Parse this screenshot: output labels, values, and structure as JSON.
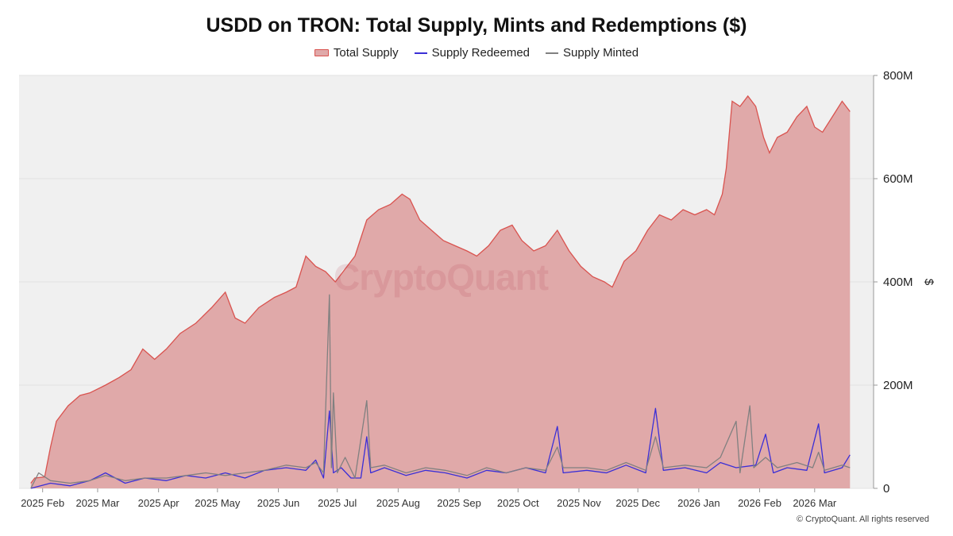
{
  "chart_data": {
    "type": "area",
    "title": "USDD on TRON: Total Supply, Mints and Redemptions ($)",
    "ylabel": "$",
    "ylim": [
      0,
      800000000
    ],
    "y_ticks": [
      {
        "value": 0,
        "label": "0"
      },
      {
        "value": 200000000,
        "label": "200M"
      },
      {
        "value": 400000000,
        "label": "400M"
      },
      {
        "value": 600000000,
        "label": "600M"
      },
      {
        "value": 800000000,
        "label": "800M"
      }
    ],
    "x_range": [
      "2025-01-20",
      "2026-03-31"
    ],
    "x_ticks": [
      {
        "date": "2025-02-01",
        "label": "2025 Feb"
      },
      {
        "date": "2025-03-01",
        "label": "2025 Mar"
      },
      {
        "date": "2025-04-01",
        "label": "2025 Apr"
      },
      {
        "date": "2025-05-01",
        "label": "2025 May"
      },
      {
        "date": "2025-06-01",
        "label": "2025 Jun"
      },
      {
        "date": "2025-07-01",
        "label": "2025 Jul"
      },
      {
        "date": "2025-08-01",
        "label": "2025 Aug"
      },
      {
        "date": "2025-09-01",
        "label": "2025 Sep"
      },
      {
        "date": "2025-10-01",
        "label": "2025 Oct"
      },
      {
        "date": "2025-11-01",
        "label": "2025 Nov"
      },
      {
        "date": "2025-12-01",
        "label": "2025 Dec"
      },
      {
        "date": "2026-01-01",
        "label": "2026 Jan"
      },
      {
        "date": "2026-02-01",
        "label": "2026 Feb"
      },
      {
        "date": "2026-03-01",
        "label": "2026 Mar"
      }
    ],
    "legend": [
      "Total Supply",
      "Supply Redeemed",
      "Supply Minted"
    ],
    "series": [
      {
        "name": "Total Supply",
        "style": "area",
        "color": "#d9534f",
        "points": [
          [
            "2025-01-26",
            10000000
          ],
          [
            "2025-01-28",
            20000000
          ],
          [
            "2025-02-02",
            22000000
          ],
          [
            "2025-02-05",
            80000000
          ],
          [
            "2025-02-08",
            130000000
          ],
          [
            "2025-02-14",
            160000000
          ],
          [
            "2025-02-20",
            180000000
          ],
          [
            "2025-02-25",
            185000000
          ],
          [
            "2025-03-05",
            200000000
          ],
          [
            "2025-03-12",
            215000000
          ],
          [
            "2025-03-18",
            230000000
          ],
          [
            "2025-03-24",
            270000000
          ],
          [
            "2025-03-30",
            250000000
          ],
          [
            "2025-04-05",
            270000000
          ],
          [
            "2025-04-12",
            300000000
          ],
          [
            "2025-04-20",
            320000000
          ],
          [
            "2025-04-28",
            350000000
          ],
          [
            "2025-05-05",
            380000000
          ],
          [
            "2025-05-10",
            330000000
          ],
          [
            "2025-05-15",
            320000000
          ],
          [
            "2025-05-22",
            350000000
          ],
          [
            "2025-05-30",
            370000000
          ],
          [
            "2025-06-05",
            380000000
          ],
          [
            "2025-06-10",
            390000000
          ],
          [
            "2025-06-15",
            450000000
          ],
          [
            "2025-06-20",
            430000000
          ],
          [
            "2025-06-25",
            420000000
          ],
          [
            "2025-06-30",
            400000000
          ],
          [
            "2025-07-04",
            420000000
          ],
          [
            "2025-07-10",
            450000000
          ],
          [
            "2025-07-16",
            520000000
          ],
          [
            "2025-07-22",
            540000000
          ],
          [
            "2025-07-28",
            550000000
          ],
          [
            "2025-08-03",
            570000000
          ],
          [
            "2025-08-07",
            560000000
          ],
          [
            "2025-08-12",
            520000000
          ],
          [
            "2025-08-18",
            500000000
          ],
          [
            "2025-08-24",
            480000000
          ],
          [
            "2025-08-30",
            470000000
          ],
          [
            "2025-09-05",
            460000000
          ],
          [
            "2025-09-10",
            450000000
          ],
          [
            "2025-09-16",
            470000000
          ],
          [
            "2025-09-22",
            500000000
          ],
          [
            "2025-09-28",
            510000000
          ],
          [
            "2025-10-03",
            480000000
          ],
          [
            "2025-10-09",
            460000000
          ],
          [
            "2025-10-15",
            470000000
          ],
          [
            "2025-10-21",
            500000000
          ],
          [
            "2025-10-27",
            460000000
          ],
          [
            "2025-11-02",
            430000000
          ],
          [
            "2025-11-08",
            410000000
          ],
          [
            "2025-11-14",
            400000000
          ],
          [
            "2025-11-18",
            390000000
          ],
          [
            "2025-11-24",
            440000000
          ],
          [
            "2025-11-30",
            460000000
          ],
          [
            "2025-12-06",
            500000000
          ],
          [
            "2025-12-12",
            530000000
          ],
          [
            "2025-12-18",
            520000000
          ],
          [
            "2025-12-24",
            540000000
          ],
          [
            "2025-12-30",
            530000000
          ],
          [
            "2026-01-05",
            540000000
          ],
          [
            "2026-01-09",
            530000000
          ],
          [
            "2026-01-13",
            570000000
          ],
          [
            "2026-01-15",
            620000000
          ],
          [
            "2026-01-18",
            750000000
          ],
          [
            "2026-01-22",
            740000000
          ],
          [
            "2026-01-26",
            760000000
          ],
          [
            "2026-01-30",
            740000000
          ],
          [
            "2026-02-03",
            680000000
          ],
          [
            "2026-02-06",
            650000000
          ],
          [
            "2026-02-10",
            680000000
          ],
          [
            "2026-02-15",
            690000000
          ],
          [
            "2026-02-20",
            720000000
          ],
          [
            "2026-02-25",
            740000000
          ],
          [
            "2026-03-01",
            700000000
          ],
          [
            "2026-03-05",
            690000000
          ],
          [
            "2026-03-10",
            720000000
          ],
          [
            "2026-03-15",
            750000000
          ],
          [
            "2026-03-19",
            730000000
          ]
        ]
      },
      {
        "name": "Supply Redeemed",
        "style": "line",
        "color": "#3b2fd6",
        "points": [
          [
            "2025-01-26",
            0
          ],
          [
            "2025-02-05",
            10000000
          ],
          [
            "2025-02-15",
            5000000
          ],
          [
            "2025-02-25",
            15000000
          ],
          [
            "2025-03-05",
            30000000
          ],
          [
            "2025-03-15",
            10000000
          ],
          [
            "2025-03-25",
            20000000
          ],
          [
            "2025-04-05",
            15000000
          ],
          [
            "2025-04-15",
            25000000
          ],
          [
            "2025-04-25",
            20000000
          ],
          [
            "2025-05-05",
            30000000
          ],
          [
            "2025-05-15",
            20000000
          ],
          [
            "2025-05-25",
            35000000
          ],
          [
            "2025-06-05",
            40000000
          ],
          [
            "2025-06-15",
            35000000
          ],
          [
            "2025-06-20",
            55000000
          ],
          [
            "2025-06-24",
            20000000
          ],
          [
            "2025-06-27",
            150000000
          ],
          [
            "2025-06-29",
            30000000
          ],
          [
            "2025-07-03",
            40000000
          ],
          [
            "2025-07-08",
            20000000
          ],
          [
            "2025-07-13",
            20000000
          ],
          [
            "2025-07-16",
            100000000
          ],
          [
            "2025-07-18",
            30000000
          ],
          [
            "2025-07-25",
            40000000
          ],
          [
            "2025-08-05",
            25000000
          ],
          [
            "2025-08-15",
            35000000
          ],
          [
            "2025-08-25",
            30000000
          ],
          [
            "2025-09-05",
            20000000
          ],
          [
            "2025-09-15",
            35000000
          ],
          [
            "2025-09-25",
            30000000
          ],
          [
            "2025-10-05",
            40000000
          ],
          [
            "2025-10-15",
            30000000
          ],
          [
            "2025-10-21",
            120000000
          ],
          [
            "2025-10-24",
            30000000
          ],
          [
            "2025-11-05",
            35000000
          ],
          [
            "2025-11-15",
            30000000
          ],
          [
            "2025-11-25",
            45000000
          ],
          [
            "2025-12-05",
            30000000
          ],
          [
            "2025-12-10",
            155000000
          ],
          [
            "2025-12-14",
            35000000
          ],
          [
            "2025-12-25",
            40000000
          ],
          [
            "2026-01-05",
            30000000
          ],
          [
            "2026-01-12",
            50000000
          ],
          [
            "2026-01-20",
            40000000
          ],
          [
            "2026-01-30",
            45000000
          ],
          [
            "2026-02-04",
            105000000
          ],
          [
            "2026-02-08",
            30000000
          ],
          [
            "2026-02-15",
            40000000
          ],
          [
            "2026-02-25",
            35000000
          ],
          [
            "2026-03-03",
            125000000
          ],
          [
            "2026-03-06",
            30000000
          ],
          [
            "2026-03-15",
            40000000
          ],
          [
            "2026-03-19",
            65000000
          ]
        ]
      },
      {
        "name": "Supply Minted",
        "style": "line",
        "color": "#808080",
        "points": [
          [
            "2025-01-26",
            0
          ],
          [
            "2025-01-30",
            30000000
          ],
          [
            "2025-02-05",
            15000000
          ],
          [
            "2025-02-15",
            10000000
          ],
          [
            "2025-02-25",
            15000000
          ],
          [
            "2025-03-05",
            25000000
          ],
          [
            "2025-03-15",
            15000000
          ],
          [
            "2025-03-25",
            20000000
          ],
          [
            "2025-04-05",
            20000000
          ],
          [
            "2025-04-15",
            25000000
          ],
          [
            "2025-04-25",
            30000000
          ],
          [
            "2025-05-05",
            25000000
          ],
          [
            "2025-05-15",
            30000000
          ],
          [
            "2025-05-25",
            35000000
          ],
          [
            "2025-06-05",
            45000000
          ],
          [
            "2025-06-15",
            40000000
          ],
          [
            "2025-06-20",
            50000000
          ],
          [
            "2025-06-24",
            30000000
          ],
          [
            "2025-06-27",
            375000000
          ],
          [
            "2025-06-28",
            40000000
          ],
          [
            "2025-06-29",
            185000000
          ],
          [
            "2025-07-01",
            30000000
          ],
          [
            "2025-07-05",
            60000000
          ],
          [
            "2025-07-10",
            20000000
          ],
          [
            "2025-07-16",
            170000000
          ],
          [
            "2025-07-18",
            40000000
          ],
          [
            "2025-07-25",
            45000000
          ],
          [
            "2025-08-05",
            30000000
          ],
          [
            "2025-08-15",
            40000000
          ],
          [
            "2025-08-25",
            35000000
          ],
          [
            "2025-09-05",
            25000000
          ],
          [
            "2025-09-15",
            40000000
          ],
          [
            "2025-09-25",
            30000000
          ],
          [
            "2025-10-05",
            40000000
          ],
          [
            "2025-10-15",
            35000000
          ],
          [
            "2025-10-21",
            80000000
          ],
          [
            "2025-10-24",
            40000000
          ],
          [
            "2025-11-05",
            40000000
          ],
          [
            "2025-11-15",
            35000000
          ],
          [
            "2025-11-25",
            50000000
          ],
          [
            "2025-12-05",
            35000000
          ],
          [
            "2025-12-10",
            100000000
          ],
          [
            "2025-12-14",
            40000000
          ],
          [
            "2025-12-25",
            45000000
          ],
          [
            "2026-01-05",
            40000000
          ],
          [
            "2026-01-12",
            60000000
          ],
          [
            "2026-01-20",
            130000000
          ],
          [
            "2026-01-22",
            30000000
          ],
          [
            "2026-01-27",
            160000000
          ],
          [
            "2026-01-29",
            40000000
          ],
          [
            "2026-02-04",
            60000000
          ],
          [
            "2026-02-10",
            40000000
          ],
          [
            "2026-02-20",
            50000000
          ],
          [
            "2026-02-28",
            40000000
          ],
          [
            "2026-03-03",
            70000000
          ],
          [
            "2026-03-06",
            35000000
          ],
          [
            "2026-03-15",
            45000000
          ],
          [
            "2026-03-19",
            40000000
          ]
        ]
      }
    ]
  },
  "watermark": "CryptoQuant",
  "copyright": "© CryptoQuant. All rights reserved",
  "colors": {
    "plot_background": "#f0f0f0",
    "gridline": "#e2e2e2",
    "total_supply_fill": "#e0a9a9",
    "total_supply_line": "#d9534f",
    "redeemed_line": "#3b2fd6",
    "minted_line": "#808080"
  }
}
